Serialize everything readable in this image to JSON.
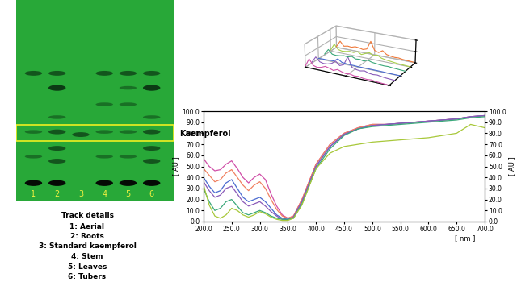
{
  "plate": {
    "label": "Kaempferol",
    "highlight_rf": [
      0.23,
      0.32
    ],
    "tracks": [
      {
        "number": "1",
        "bands": [
          [
            0.0,
            3
          ],
          [
            0.145,
            1
          ],
          [
            0.28,
            1
          ],
          [
            0.6,
            2
          ]
        ]
      },
      {
        "number": "2",
        "bands": [
          [
            0.0,
            3
          ],
          [
            0.12,
            2
          ],
          [
            0.19,
            2
          ],
          [
            0.28,
            2
          ],
          [
            0.36,
            1
          ],
          [
            0.52,
            3
          ],
          [
            0.6,
            2
          ]
        ]
      },
      {
        "number": "3",
        "bands": [
          [
            0.265,
            2
          ]
        ]
      },
      {
        "number": "4",
        "bands": [
          [
            0.0,
            3
          ],
          [
            0.145,
            1
          ],
          [
            0.28,
            1
          ],
          [
            0.43,
            1
          ],
          [
            0.6,
            2
          ]
        ]
      },
      {
        "number": "5",
        "bands": [
          [
            0.0,
            3
          ],
          [
            0.145,
            1
          ],
          [
            0.28,
            1
          ],
          [
            0.43,
            1
          ],
          [
            0.52,
            1
          ],
          [
            0.6,
            2
          ]
        ]
      },
      {
        "number": "6",
        "bands": [
          [
            0.0,
            3
          ],
          [
            0.12,
            2
          ],
          [
            0.19,
            2
          ],
          [
            0.28,
            2
          ],
          [
            0.36,
            1
          ],
          [
            0.52,
            3
          ],
          [
            0.6,
            2
          ]
        ]
      }
    ]
  },
  "track_details": {
    "title": "Track details",
    "items": [
      "1: Aerial",
      "2: Roots",
      "3: Standard kaempferol",
      "4: Stem",
      "5: Leaves",
      "6: Tubers"
    ]
  },
  "chart_data": [
    {
      "type": "waterfall",
      "tick_labels": false,
      "grid": true,
      "x": [
        0.0,
        0.05,
        0.1,
        0.15,
        0.2,
        0.25,
        0.3,
        0.35,
        0.4,
        0.45,
        0.5,
        0.55,
        0.6,
        0.65,
        0.7,
        0.75,
        0.8,
        0.85,
        0.9,
        0.95,
        1.0
      ],
      "xlim": [
        0,
        1
      ],
      "ylim": [
        0,
        100
      ],
      "series": [
        {
          "color": "#d04fa8",
          "values": [
            5,
            40,
            15,
            10,
            14,
            22,
            18,
            12,
            20,
            14,
            10,
            12,
            8,
            10,
            6,
            5,
            7,
            4,
            3,
            2,
            1
          ]
        },
        {
          "color": "#8a5ab8",
          "values": [
            4,
            30,
            12,
            8,
            10,
            16,
            30,
            14,
            22,
            60,
            18,
            12,
            10,
            14,
            8,
            6,
            8,
            5,
            3,
            2,
            1
          ]
        },
        {
          "color": "#4a6ad0",
          "values": [
            2,
            3,
            3,
            4,
            5,
            18,
            6,
            4,
            3,
            3,
            2,
            2,
            2,
            2,
            2,
            2,
            2,
            1,
            1,
            1,
            1
          ]
        },
        {
          "color": "#3aa87a",
          "values": [
            4,
            28,
            10,
            8,
            10,
            14,
            12,
            18,
            10,
            12,
            8,
            16,
            10,
            8,
            6,
            5,
            6,
            4,
            3,
            2,
            1
          ]
        },
        {
          "color": "#a8d04a",
          "values": [
            5,
            35,
            14,
            10,
            12,
            16,
            14,
            22,
            12,
            20,
            28,
            18,
            24,
            14,
            10,
            8,
            6,
            4,
            3,
            2,
            1
          ]
        },
        {
          "color": "#f07838",
          "values": [
            4,
            32,
            12,
            16,
            14,
            20,
            18,
            14,
            20,
            58,
            20,
            14,
            26,
            12,
            8,
            6,
            7,
            4,
            3,
            2,
            1
          ]
        }
      ]
    },
    {
      "type": "line",
      "grid": false,
      "x_label": "[ nm ]",
      "y_label": "[ AU ]",
      "y2_label": "[ AU ]",
      "x": [
        200,
        210,
        220,
        230,
        240,
        250,
        260,
        270,
        280,
        290,
        300,
        310,
        320,
        330,
        340,
        350,
        360,
        375,
        400,
        425,
        450,
        475,
        500,
        525,
        550,
        575,
        600,
        625,
        650,
        675,
        700
      ],
      "xlim": [
        200,
        700
      ],
      "ylim": [
        0,
        100
      ],
      "y2lim": [
        0,
        100
      ],
      "xticks": [
        {
          "value": 200,
          "label": "200.0"
        },
        {
          "value": 250,
          "label": "250.0"
        },
        {
          "value": 300,
          "label": "300.0"
        },
        {
          "value": 350,
          "label": "350.0"
        },
        {
          "value": 400,
          "label": "400.0"
        },
        {
          "value": 450,
          "label": "450.0"
        },
        {
          "value": 500,
          "label": "500.0"
        },
        {
          "value": 550,
          "label": "550.0"
        },
        {
          "value": 600,
          "label": "600.0"
        },
        {
          "value": 650,
          "label": "650.0"
        },
        {
          "value": 700,
          "label": "700.0"
        }
      ],
      "yticks": [
        {
          "value": 0,
          "label": "0.0"
        },
        {
          "value": 10,
          "label": "10.0"
        },
        {
          "value": 20,
          "label": "20.0"
        },
        {
          "value": 30,
          "label": "30.0"
        },
        {
          "value": 40,
          "label": "40.0"
        },
        {
          "value": 50,
          "label": "50.0"
        },
        {
          "value": 60,
          "label": "60.0"
        },
        {
          "value": 70,
          "label": "70.0"
        },
        {
          "value": 80,
          "label": "80.0"
        },
        {
          "value": 90,
          "label": "90.0"
        },
        {
          "value": 100,
          "label": "100.0"
        }
      ],
      "y2ticks": [
        {
          "value": 0,
          "label": "0.0"
        },
        {
          "value": 10,
          "label": "10.0"
        },
        {
          "value": 20,
          "label": "20.0"
        },
        {
          "value": 30,
          "label": "30.0"
        },
        {
          "value": 40,
          "label": "40.0"
        },
        {
          "value": 50,
          "label": "50.0"
        },
        {
          "value": 60,
          "label": "60.0"
        },
        {
          "value": 70,
          "label": "70.0"
        },
        {
          "value": 80,
          "label": "80.0"
        },
        {
          "value": 90,
          "label": "90.0"
        },
        {
          "value": 100,
          "label": "100.0"
        }
      ],
      "series": [
        {
          "color": "#d04fa8",
          "values": [
            57,
            50,
            46,
            47,
            52,
            55,
            48,
            40,
            35,
            40,
            43,
            38,
            25,
            14,
            6,
            3,
            5,
            20,
            52,
            70,
            80,
            85,
            88,
            88,
            89,
            90,
            91,
            92,
            93,
            95,
            96
          ]
        },
        {
          "color": "#f08060",
          "values": [
            48,
            42,
            36,
            38,
            44,
            47,
            40,
            33,
            28,
            33,
            36,
            30,
            20,
            11,
            5,
            3,
            5,
            20,
            52,
            70,
            80,
            85,
            88,
            88,
            89,
            90,
            91,
            92,
            93,
            95,
            96
          ]
        },
        {
          "color": "#4a6ad0",
          "values": [
            40,
            32,
            26,
            28,
            35,
            38,
            30,
            22,
            18,
            20,
            22,
            18,
            12,
            6,
            3,
            2,
            4,
            18,
            50,
            68,
            79,
            84,
            87,
            88,
            89,
            90,
            91,
            92,
            93,
            95,
            96
          ]
        },
        {
          "color": "#8a5ab8",
          "values": [
            36,
            28,
            22,
            24,
            30,
            32,
            25,
            18,
            14,
            16,
            18,
            14,
            9,
            5,
            2,
            2,
            4,
            18,
            50,
            68,
            79,
            84,
            87,
            88,
            89,
            90,
            91,
            92,
            93,
            95,
            96
          ]
        },
        {
          "color": "#3aa87a",
          "values": [
            30,
            18,
            10,
            12,
            18,
            20,
            14,
            8,
            6,
            8,
            10,
            8,
            5,
            3,
            2,
            2,
            3,
            16,
            48,
            66,
            78,
            84,
            86,
            87,
            88,
            89,
            90,
            91,
            92,
            94,
            95
          ]
        },
        {
          "color": "#a8c83a",
          "values": [
            33,
            15,
            5,
            3,
            6,
            12,
            10,
            6,
            4,
            6,
            9,
            7,
            4,
            2,
            1,
            1,
            3,
            15,
            48,
            62,
            68,
            70,
            72,
            73,
            74,
            75,
            76,
            78,
            80,
            88,
            85
          ]
        }
      ]
    }
  ]
}
